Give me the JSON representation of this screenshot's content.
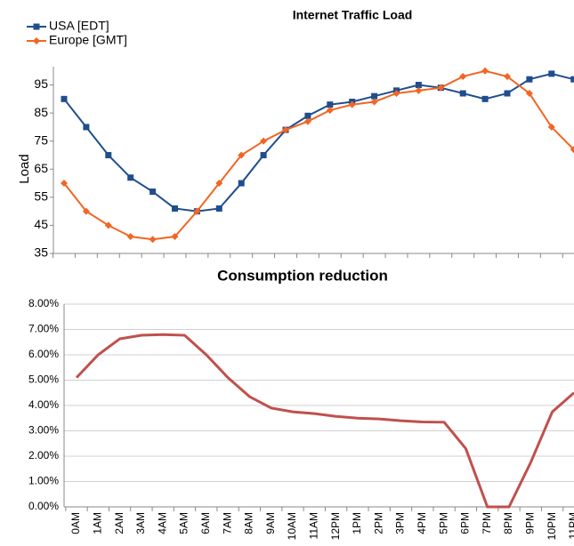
{
  "chart_data": [
    {
      "type": "line",
      "title": "Internet Traffic Load",
      "ylabel": "Load",
      "series": [
        {
          "name": "USA [EDT]",
          "color": "#1f4e8c",
          "marker": "square",
          "values": [
            90,
            80,
            70,
            62,
            57,
            51,
            50,
            51,
            60,
            70,
            79,
            84,
            88,
            89,
            91,
            93,
            95,
            94,
            92,
            90,
            92,
            97,
            99,
            97
          ]
        },
        {
          "name": "Europe [GMT]",
          "color": "#f26522",
          "marker": "diamond",
          "values": [
            60,
            50,
            45,
            41,
            40,
            41,
            50,
            60,
            70,
            75,
            79,
            82,
            86,
            88,
            89,
            92,
            93,
            94,
            98,
            100,
            98,
            92,
            80,
            72
          ]
        }
      ],
      "ylim": [
        35,
        101.5
      ],
      "yticks": [
        35,
        45,
        55,
        65,
        75,
        85,
        95
      ],
      "legend": "top-left"
    },
    {
      "type": "line",
      "title": "Consumption reduction",
      "categories": [
        "0AM",
        "1AM",
        "2AM",
        "3AM",
        "4AM",
        "5AM",
        "6AM",
        "7AM",
        "8AM",
        "9AM",
        "10AM",
        "11AM",
        "12PM",
        "1PM",
        "2PM",
        "3PM",
        "4PM",
        "5PM",
        "6PM",
        "7PM",
        "8PM",
        "9PM",
        "10PM",
        "11PM"
      ],
      "values": [
        5.1,
        6.0,
        6.63,
        6.77,
        6.8,
        6.77,
        6.0,
        5.1,
        4.35,
        3.9,
        3.75,
        3.68,
        3.57,
        3.5,
        3.47,
        3.4,
        3.35,
        3.34,
        2.3,
        0,
        0,
        1.75,
        3.75,
        4.5
      ],
      "color": "#c0504d",
      "ylim": [
        0,
        8
      ],
      "yticks": [
        {
          "value": 0,
          "label": "0.00%"
        },
        {
          "value": 1,
          "label": "1.00%"
        },
        {
          "value": 2,
          "label": "2.00%"
        },
        {
          "value": 3,
          "label": "3.00%"
        },
        {
          "value": 4,
          "label": "4.00%"
        },
        {
          "value": 5,
          "label": "5.00%"
        },
        {
          "value": 6,
          "label": "6.00%"
        },
        {
          "value": 7,
          "label": "7.00%"
        },
        {
          "value": 8,
          "label": "8.00%"
        }
      ],
      "grid": true
    }
  ]
}
